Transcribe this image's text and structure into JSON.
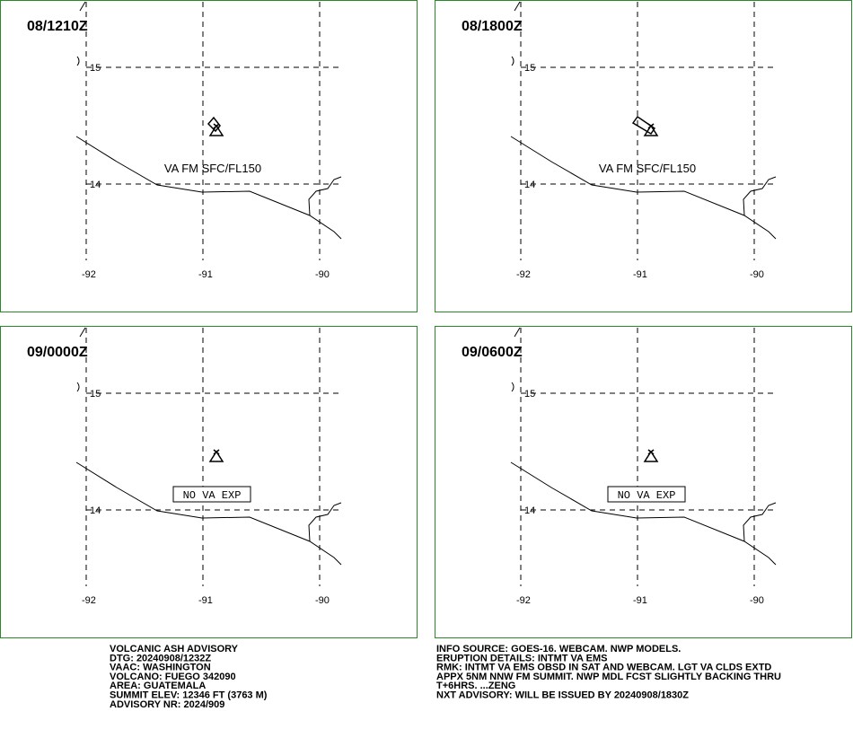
{
  "panels": [
    {
      "time": "08/1210Z",
      "lat_labels": [
        "15",
        "14"
      ],
      "lon_labels": [
        "-92",
        "-91",
        "-90"
      ],
      "annotation": "VA FM SFC/FL150"
    },
    {
      "time": "08/1800Z",
      "lat_labels": [
        "15",
        "14"
      ],
      "lon_labels": [
        "-92",
        "-91",
        "-90"
      ],
      "annotation": "VA FM SFC/FL150"
    },
    {
      "time": "09/0000Z",
      "lat_labels": [
        "15",
        "14"
      ],
      "lon_labels": [
        "-92",
        "-91",
        "-90"
      ],
      "annotation": "NO VA EXP"
    },
    {
      "time": "09/0600Z",
      "lat_labels": [
        "15",
        "14"
      ],
      "lon_labels": [
        "-92",
        "-91",
        "-90"
      ],
      "annotation": "NO VA EXP"
    }
  ],
  "advisory_left": [
    "VOLCANIC ASH ADVISORY",
    "DTG: 20240908/1232Z",
    "VAAC: WASHINGTON",
    "VOLCANO: FUEGO 342090",
    "AREA: GUATEMALA",
    "SUMMIT ELEV: 12346 FT (3763 M)",
    "ADVISORY NR: 2024/909"
  ],
  "advisory_right": [
    "INFO SOURCE: GOES-16. WEBCAM. NWP MODELS.",
    "ERUPTION DETAILS: INTMT VA EMS",
    "RMK: INTMT VA EMS OBSD IN SAT AND WEBCAM. LGT VA CLDS EXTD",
    "APPX 5NM NNW FM SUMMIT. NWP MDL FCST SLIGHTLY BACKING THRU",
    "T+6HRS. ...ZENG",
    "NXT ADVISORY: WILL BE ISSUED BY 20240908/1830Z"
  ]
}
